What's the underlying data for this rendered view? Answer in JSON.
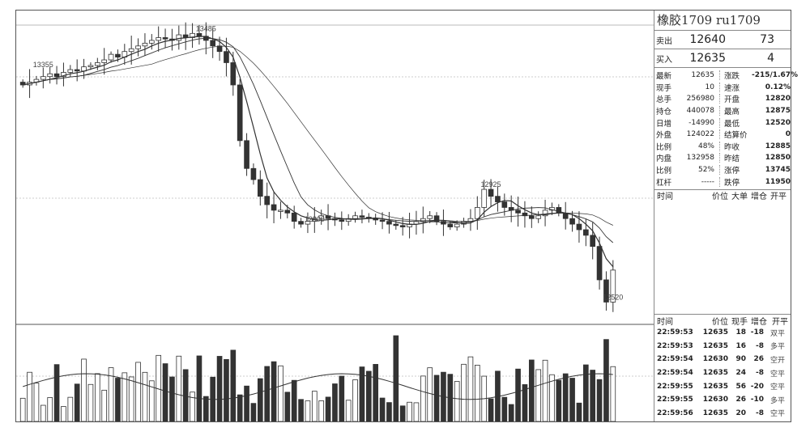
{
  "header": {
    "title": "橡胶1709 ru1709"
  },
  "quotes": {
    "ask": {
      "label": "卖出",
      "price": "12640",
      "volume": "73"
    },
    "bid": {
      "label": "买入",
      "price": "12635",
      "volume": "4"
    }
  },
  "stats": [
    {
      "l1": "最新",
      "v1": "12635",
      "l2": "涨跌",
      "v2": "-215/1.67%"
    },
    {
      "l1": "现手",
      "v1": "10",
      "l2": "速涨",
      "v2": "0.12%"
    },
    {
      "l1": "总手",
      "v1": "256980",
      "l2": "开盘",
      "v2": "12820"
    },
    {
      "l1": "持仓",
      "v1": "440078",
      "l2": "最高",
      "v2": "12875"
    },
    {
      "l1": "日增",
      "v1": "-14990",
      "l2": "最低",
      "v2": "12520"
    },
    {
      "l1": "外盘",
      "v1": "124022",
      "l2": "结算价",
      "v2": "0"
    },
    {
      "l1": "比例",
      "v1": "48%",
      "l2": "昨收",
      "v2": "12885"
    },
    {
      "l1": "内盘",
      "v1": "132958",
      "l2": "昨结",
      "v2": "12850"
    },
    {
      "l1": "比例",
      "v1": "52%",
      "l2": "涨停",
      "v2": "13745"
    },
    {
      "l1": "杠杆",
      "v1": "-----",
      "l2": "跌停",
      "v2": "11950"
    }
  ],
  "big_orders": {
    "headers": [
      "时间",
      "价位",
      "大单",
      "增仓",
      "开平"
    ]
  },
  "ticks": {
    "headers": [
      "时间",
      "价位",
      "现手",
      "增仓",
      "开平"
    ],
    "rows": [
      {
        "time": "22:59:53",
        "price": "12635",
        "vol": "18",
        "oi": "-18",
        "kind": "双平"
      },
      {
        "time": "22:59:53",
        "price": "12635",
        "vol": "16",
        "oi": "-8",
        "kind": "多平"
      },
      {
        "time": "22:59:54",
        "price": "12630",
        "vol": "90",
        "oi": "26",
        "kind": "空开"
      },
      {
        "time": "22:59:54",
        "price": "12635",
        "vol": "24",
        "oi": "-8",
        "kind": "空平"
      },
      {
        "time": "22:59:55",
        "price": "12635",
        "vol": "56",
        "oi": "-20",
        "kind": "空平"
      },
      {
        "time": "22:59:55",
        "price": "12630",
        "vol": "26",
        "oi": "-10",
        "kind": "多平"
      },
      {
        "time": "22:59:56",
        "price": "12635",
        "vol": "20",
        "oi": "-8",
        "kind": "空平"
      }
    ]
  },
  "chart_data": {
    "type": "candlestick",
    "price_labels": [
      "13485",
      "13355",
      "12925",
      "12800",
      "12520"
    ],
    "price_scale": {
      "high": 13485,
      "low": 12520
    },
    "candles_close": [
      13300,
      13310,
      13320,
      13330,
      13340,
      13330,
      13345,
      13355,
      13350,
      13365,
      13370,
      13380,
      13390,
      13410,
      13400,
      13420,
      13430,
      13440,
      13450,
      13460,
      13470,
      13465,
      13460,
      13480,
      13470,
      13485,
      13475,
      13460,
      13440,
      13420,
      13380,
      13300,
      13100,
      13000,
      12960,
      12900,
      12870,
      12850,
      12850,
      12840,
      12810,
      12800,
      12810,
      12820,
      12830,
      12820,
      12815,
      12810,
      12820,
      12830,
      12825,
      12820,
      12815,
      12810,
      12800,
      12795,
      12790,
      12800,
      12810,
      12820,
      12830,
      12810,
      12800,
      12790,
      12800,
      12810,
      12820,
      12860,
      12925,
      12900,
      12880,
      12860,
      12850,
      12840,
      12830,
      12820,
      12830,
      12850,
      12860,
      12840,
      12820,
      12800,
      12780,
      12760,
      12720,
      12600,
      12520,
      12635
    ],
    "volume_note": "volume bars with moving-average line"
  },
  "colors": {
    "candle_up": "#ffffff",
    "candle_down": "#333333",
    "ma": "#333333",
    "grid": "#cccccc"
  }
}
